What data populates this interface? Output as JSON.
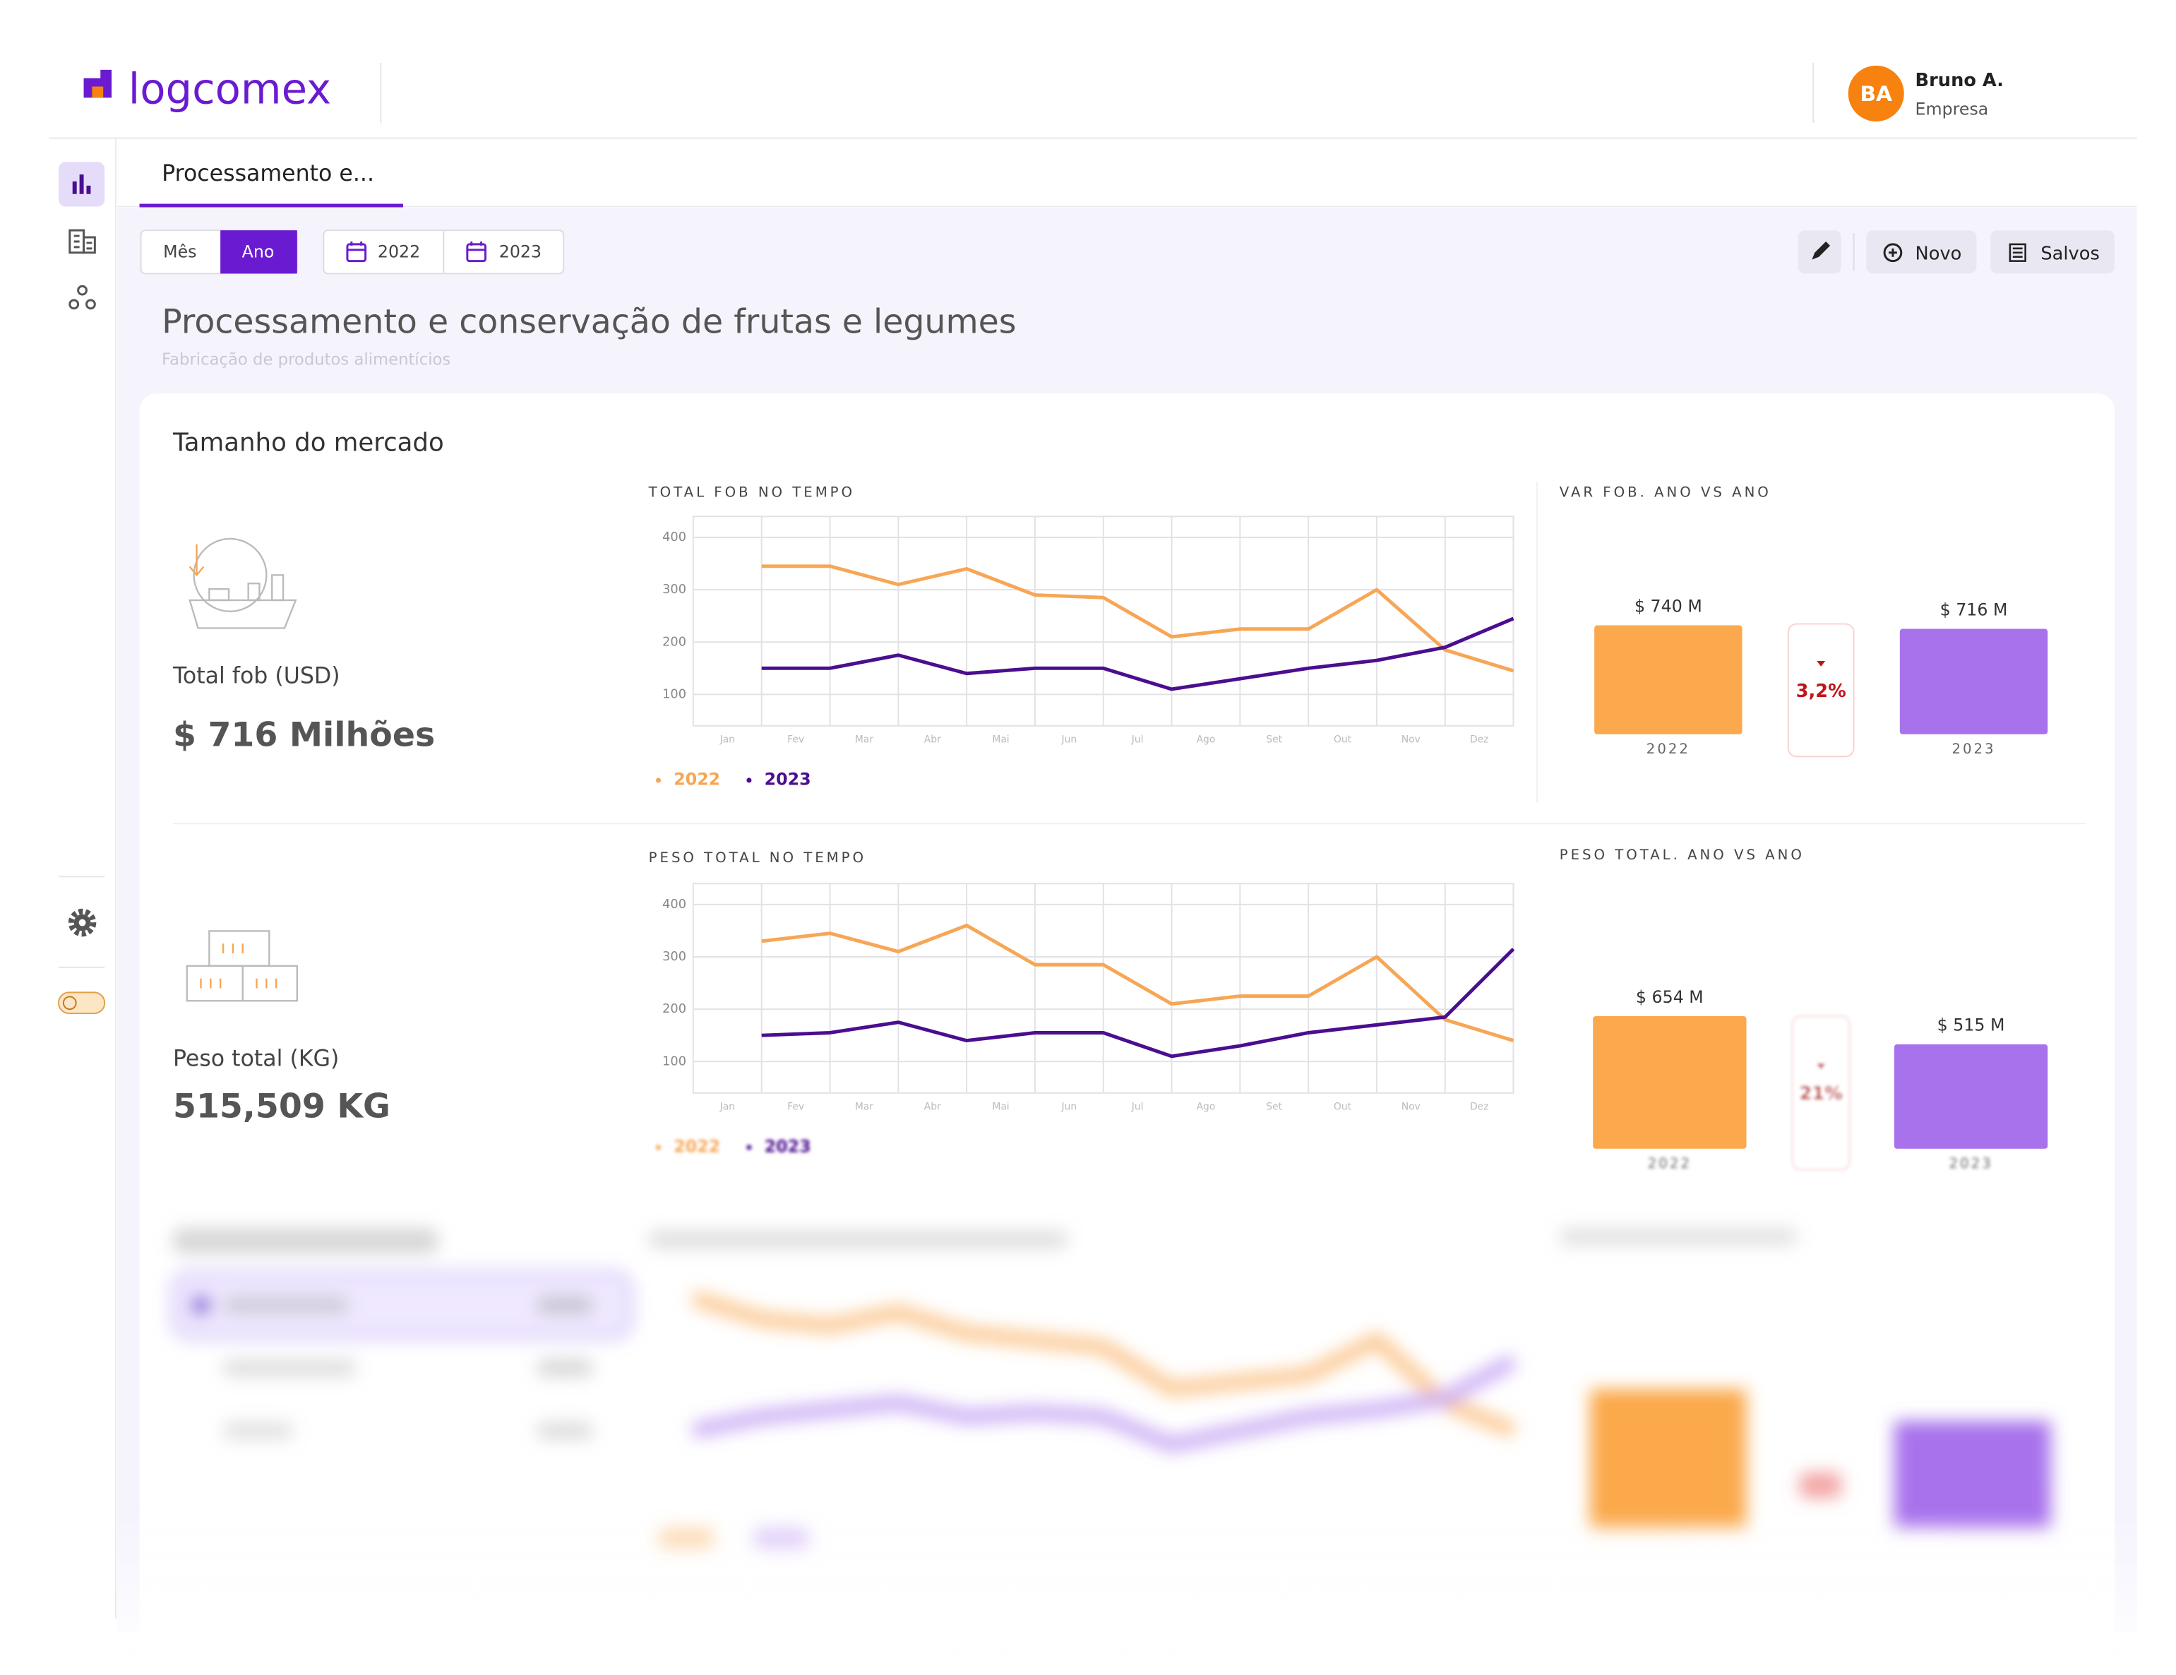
{
  "header": {
    "logo": "logcomex",
    "user_initials": "BA",
    "user_name": "Bruno A.",
    "user_role": "Empresa"
  },
  "tab": "Processamento e...",
  "toolbar": {
    "period": [
      "Mês",
      "Ano"
    ],
    "years": [
      "2022",
      "2023"
    ],
    "buttons": [
      "Novo",
      "Salvos"
    ]
  },
  "page": {
    "title": "Processamento e conservação de frutas e legumes",
    "subtitle": "Fabricação de produtos alimentícios"
  },
  "section": {
    "title": "Tamanho do mercado"
  },
  "metrics": [
    {
      "label": "Total fob (USD)",
      "value": "$ 716 Milhões"
    },
    {
      "label": "Peso total (KG)",
      "value": "515,509 KG"
    }
  ],
  "line_charts": [
    {
      "type": "line",
      "title": "TOTAL FOB NO TEMPO",
      "categories": [
        "Jan",
        "Fev",
        "Mar",
        "Abr",
        "Mai",
        "Jun",
        "Jul",
        "Ago",
        "Set",
        "Out",
        "Nov",
        "Dez"
      ],
      "ylim": [
        40,
        440
      ],
      "yticks": [
        100,
        200,
        300,
        400
      ],
      "grid": true,
      "series": [
        {
          "name": "2022",
          "color": "#f7a655",
          "values": [
            345,
            345,
            310,
            340,
            290,
            285,
            210,
            225,
            225,
            300,
            185,
            145
          ]
        },
        {
          "name": "2023",
          "color": "#4a0e8f",
          "values": [
            150,
            150,
            175,
            140,
            150,
            150,
            110,
            130,
            150,
            165,
            190,
            245
          ]
        }
      ]
    },
    {
      "type": "line",
      "title": "PESO TOTAL NO TEMPO",
      "categories": [
        "Jan",
        "Fev",
        "Mar",
        "Abr",
        "Mai",
        "Jun",
        "Jul",
        "Ago",
        "Set",
        "Out",
        "Nov",
        "Dez"
      ],
      "ylim": [
        40,
        440
      ],
      "yticks": [
        100,
        200,
        300,
        400
      ],
      "grid": true,
      "series": [
        {
          "name": "2022",
          "color": "#f7a655",
          "values": [
            330,
            345,
            310,
            360,
            285,
            285,
            210,
            225,
            225,
            300,
            180,
            140
          ]
        },
        {
          "name": "2023",
          "color": "#4a0e8f",
          "values": [
            150,
            155,
            175,
            140,
            155,
            155,
            110,
            130,
            155,
            170,
            185,
            315
          ]
        }
      ]
    }
  ],
  "bar_charts": [
    {
      "type": "bar",
      "title": "VAR FOB. ANO VS ANO",
      "categories": [
        "2022",
        "2023"
      ],
      "values": [
        740,
        716
      ],
      "value_labels": [
        "$ 740 M",
        "$ 716 M"
      ],
      "colors": [
        "#fba94c",
        "#a872ec"
      ],
      "change": "3,2%"
    },
    {
      "type": "bar",
      "title": "PESO TOTAL. ANO VS ANO",
      "categories": [
        "2022",
        "2023"
      ],
      "values": [
        654,
        515
      ],
      "value_labels": [
        "$ 654 M",
        "$ 515 M"
      ],
      "colors": [
        "#fba94c",
        "#a872ec"
      ],
      "change": "21%"
    }
  ]
}
